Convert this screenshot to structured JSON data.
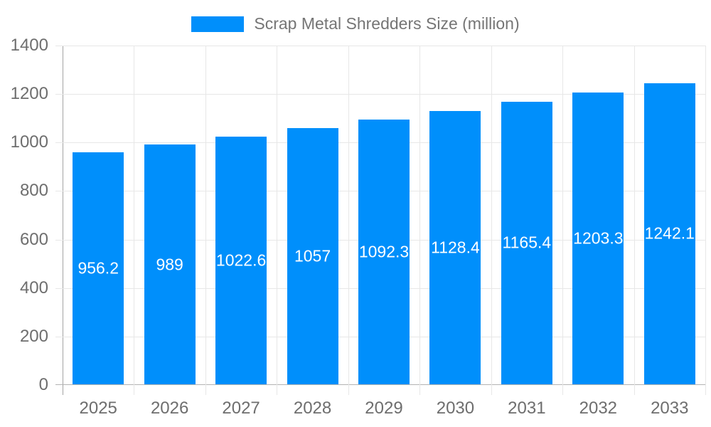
{
  "legend": {
    "series_label": "Scrap Metal Shredders Size (million)"
  },
  "chart_data": {
    "type": "bar",
    "title": "Scrap Metal Shredders Size (million)",
    "categories": [
      "2025",
      "2026",
      "2027",
      "2028",
      "2029",
      "2030",
      "2031",
      "2032",
      "2033"
    ],
    "series": [
      {
        "name": "Scrap Metal Shredders Size (million)",
        "values": [
          956.2,
          989,
          1022.6,
          1057,
          1092.3,
          1128.4,
          1165.4,
          1203.3,
          1242.1
        ]
      }
    ],
    "value_labels": [
      "956.2",
      "989",
      "1022.6",
      "1057",
      "1092.3",
      "1128.4",
      "1165.4",
      "1203.3",
      "1242.1"
    ],
    "xlabel": "",
    "ylabel": "",
    "ylim": [
      0,
      1400
    ],
    "yticks": [
      0,
      200,
      400,
      600,
      800,
      1000,
      1200,
      1400
    ],
    "grid": true,
    "legend_position": "top"
  },
  "colors": {
    "bar": "#008FFB",
    "grid": "#e7e7e7",
    "yaxis_line": "#a3a3a3",
    "xaxis_line": "#b3b3b3",
    "tick_text": "#6e6e6e",
    "legend_text": "#757575",
    "value_label": "#ffffff",
    "background": "#ffffff"
  }
}
